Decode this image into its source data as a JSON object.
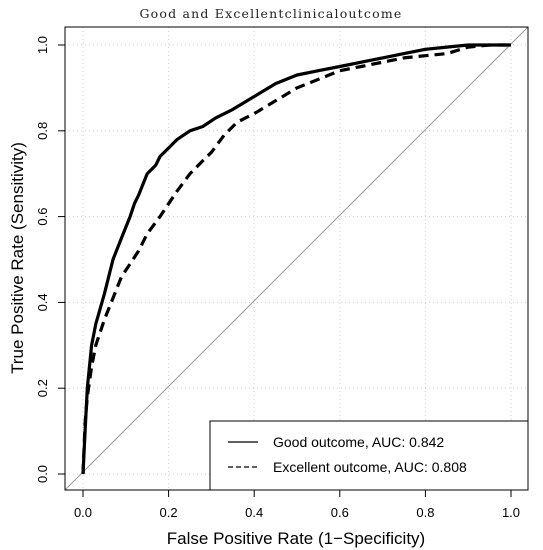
{
  "chart_data": {
    "type": "line",
    "title": "Good and Excellentclinicaloutcome",
    "xlabel": "False Positive Rate (1−Specificity)",
    "ylabel": "True Positive Rate (Sensitivity)",
    "xlim": [
      0.0,
      1.0
    ],
    "ylim": [
      0.0,
      1.0
    ],
    "xticks": [
      "0.0",
      "0.2",
      "0.4",
      "0.6",
      "0.8",
      "1.0"
    ],
    "yticks": [
      "0.0",
      "0.2",
      "0.4",
      "0.6",
      "0.8",
      "1.0"
    ],
    "grid": true,
    "legend_position": "bottom-right",
    "reference_line": true,
    "series": [
      {
        "name": "Good outcome, AUC: 0.842",
        "line_style": "solid",
        "x": [
          0.0,
          0.005,
          0.01,
          0.02,
          0.03,
          0.05,
          0.07,
          0.09,
          0.11,
          0.12,
          0.13,
          0.15,
          0.17,
          0.18,
          0.2,
          0.22,
          0.25,
          0.28,
          0.31,
          0.35,
          0.4,
          0.45,
          0.5,
          0.55,
          0.6,
          0.65,
          0.7,
          0.75,
          0.8,
          0.85,
          0.9,
          0.95,
          1.0
        ],
        "y": [
          0.0,
          0.1,
          0.2,
          0.3,
          0.35,
          0.42,
          0.5,
          0.55,
          0.6,
          0.63,
          0.65,
          0.7,
          0.72,
          0.74,
          0.76,
          0.78,
          0.8,
          0.81,
          0.83,
          0.85,
          0.88,
          0.91,
          0.93,
          0.94,
          0.95,
          0.96,
          0.97,
          0.98,
          0.99,
          0.995,
          1.0,
          1.0,
          1.0
        ]
      },
      {
        "name": "Excellent outcome, AUC: 0.808",
        "line_style": "dashed",
        "x": [
          0.0,
          0.005,
          0.01,
          0.02,
          0.03,
          0.05,
          0.07,
          0.09,
          0.11,
          0.13,
          0.15,
          0.18,
          0.2,
          0.22,
          0.25,
          0.28,
          0.3,
          0.33,
          0.36,
          0.4,
          0.45,
          0.5,
          0.55,
          0.6,
          0.65,
          0.7,
          0.75,
          0.8,
          0.85,
          0.9,
          0.95,
          1.0
        ],
        "y": [
          0.0,
          0.12,
          0.18,
          0.25,
          0.3,
          0.36,
          0.41,
          0.46,
          0.49,
          0.52,
          0.56,
          0.6,
          0.63,
          0.66,
          0.7,
          0.73,
          0.75,
          0.79,
          0.82,
          0.84,
          0.87,
          0.9,
          0.92,
          0.94,
          0.95,
          0.96,
          0.97,
          0.975,
          0.98,
          0.995,
          1.0,
          1.0
        ]
      }
    ]
  }
}
